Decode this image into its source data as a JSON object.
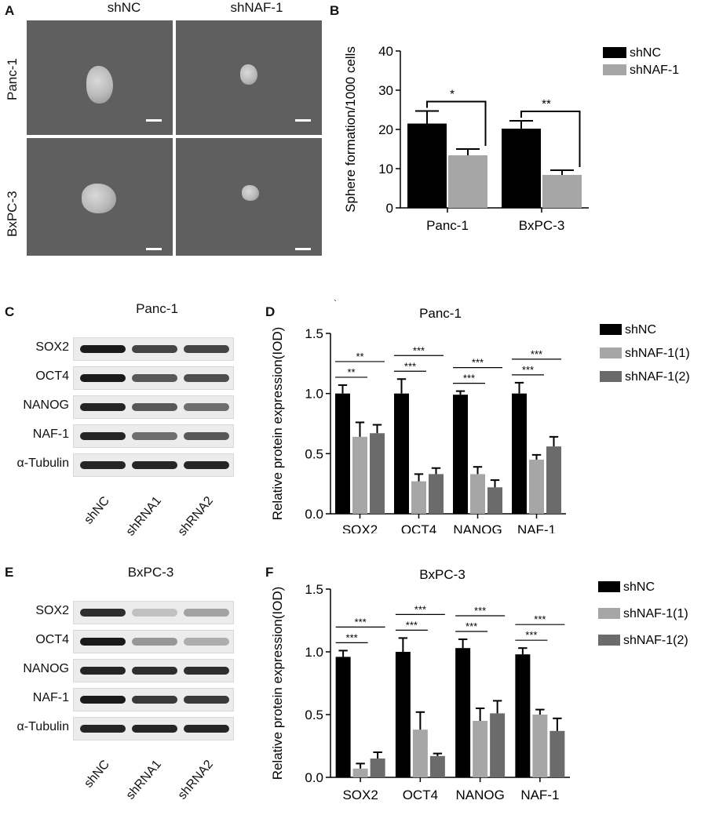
{
  "panels": {
    "a": {
      "letter": "A",
      "col_labels": [
        "shNC",
        "shNAF-1"
      ],
      "row_labels": [
        "Panc-1",
        "BxPC-3"
      ]
    },
    "b": {
      "letter": "B"
    },
    "c": {
      "letter": "C",
      "title": "Panc-1",
      "rows": [
        "SOX2",
        "OCT4",
        "NANOG",
        "NAF-1",
        "α-Tubulin"
      ],
      "lanes": [
        "shNC",
        "shRNA1",
        "shRNA2"
      ]
    },
    "d": {
      "letter": "D",
      "tick": "`"
    },
    "e": {
      "letter": "E",
      "title": "BxPC-3",
      "rows": [
        "SOX2",
        "OCT4",
        "NANOG",
        "NAF-1",
        "α-Tubulin"
      ],
      "lanes": [
        "shNC",
        "shRNA1",
        "shRNA2"
      ]
    },
    "f": {
      "letter": "F"
    }
  },
  "chart_data": [
    {
      "id": "B",
      "type": "bar",
      "title": "",
      "xlabel": "",
      "ylabel": "Sphere formation/1000 cells",
      "ylim": [
        0,
        40
      ],
      "yticks": [
        0,
        10,
        20,
        30,
        40
      ],
      "grid": false,
      "legend_position": "top-right",
      "categories": [
        "Panc-1",
        "BxPC-3"
      ],
      "series": [
        {
          "name": "shNC",
          "color": "#000000",
          "values": [
            21.5,
            20.2
          ],
          "errors": [
            3.2,
            2.0
          ]
        },
        {
          "name": "shNAF-1",
          "color": "#a6a6a6",
          "values": [
            13.4,
            8.4
          ],
          "errors": [
            1.6,
            1.2
          ]
        }
      ],
      "significance": [
        {
          "category": "Panc-1",
          "label": "*"
        },
        {
          "category": "BxPC-3",
          "label": "**"
        }
      ]
    },
    {
      "id": "D",
      "type": "bar",
      "title": "Panc-1",
      "xlabel": "",
      "ylabel": "Relative protein expression(IOD)",
      "ylim": [
        0,
        1.5
      ],
      "yticks": [
        "0.0",
        "0.5",
        "1.0",
        "1.5"
      ],
      "grid": false,
      "legend_position": "top-right",
      "categories": [
        "SOX2",
        "OCT4",
        "NANOG",
        "NAF-1"
      ],
      "series": [
        {
          "name": "shNC",
          "color": "#000000",
          "values": [
            1.0,
            1.0,
            0.99,
            1.0
          ],
          "errors": [
            0.07,
            0.12,
            0.03,
            0.09
          ]
        },
        {
          "name": "shNAF-1(1)",
          "color": "#a6a6a6",
          "values": [
            0.64,
            0.27,
            0.33,
            0.45
          ],
          "errors": [
            0.12,
            0.06,
            0.06,
            0.04
          ]
        },
        {
          "name": "shNAF-1(2)",
          "color": "#6b6b6b",
          "values": [
            0.67,
            0.33,
            0.22,
            0.56
          ],
          "errors": [
            0.07,
            0.05,
            0.06,
            0.08
          ]
        }
      ],
      "significance": [
        {
          "category": "SOX2",
          "labels": [
            "**",
            "**"
          ]
        },
        {
          "category": "OCT4",
          "labels": [
            "***",
            "***"
          ]
        },
        {
          "category": "NANOG",
          "labels": [
            "***",
            "***"
          ]
        },
        {
          "category": "NAF-1",
          "labels": [
            "***",
            "***"
          ]
        }
      ]
    },
    {
      "id": "F",
      "type": "bar",
      "title": "BxPC-3",
      "xlabel": "",
      "ylabel": "Relative protein expression(IOD)",
      "ylim": [
        0,
        1.5
      ],
      "yticks": [
        "0.0",
        "0.5",
        "1.0",
        "1.5"
      ],
      "grid": false,
      "legend_position": "top-right",
      "categories": [
        "SOX2",
        "OCT4",
        "NANOG",
        "NAF-1"
      ],
      "series": [
        {
          "name": "shNC",
          "color": "#000000",
          "values": [
            0.96,
            1.0,
            1.03,
            0.98
          ],
          "errors": [
            0.05,
            0.11,
            0.07,
            0.05
          ]
        },
        {
          "name": "shNAF-1(1)",
          "color": "#a6a6a6",
          "values": [
            0.07,
            0.38,
            0.45,
            0.5
          ],
          "errors": [
            0.04,
            0.14,
            0.1,
            0.04
          ]
        },
        {
          "name": "shNAF-1(2)",
          "color": "#6b6b6b",
          "values": [
            0.15,
            0.17,
            0.51,
            0.37
          ],
          "errors": [
            0.05,
            0.02,
            0.1,
            0.1
          ]
        }
      ],
      "significance": [
        {
          "category": "SOX2",
          "labels": [
            "***",
            "***"
          ]
        },
        {
          "category": "OCT4",
          "labels": [
            "***",
            "***"
          ]
        },
        {
          "category": "NANOG",
          "labels": [
            "***",
            "***"
          ]
        },
        {
          "category": "NAF-1",
          "labels": [
            "***",
            "***"
          ]
        }
      ]
    }
  ]
}
